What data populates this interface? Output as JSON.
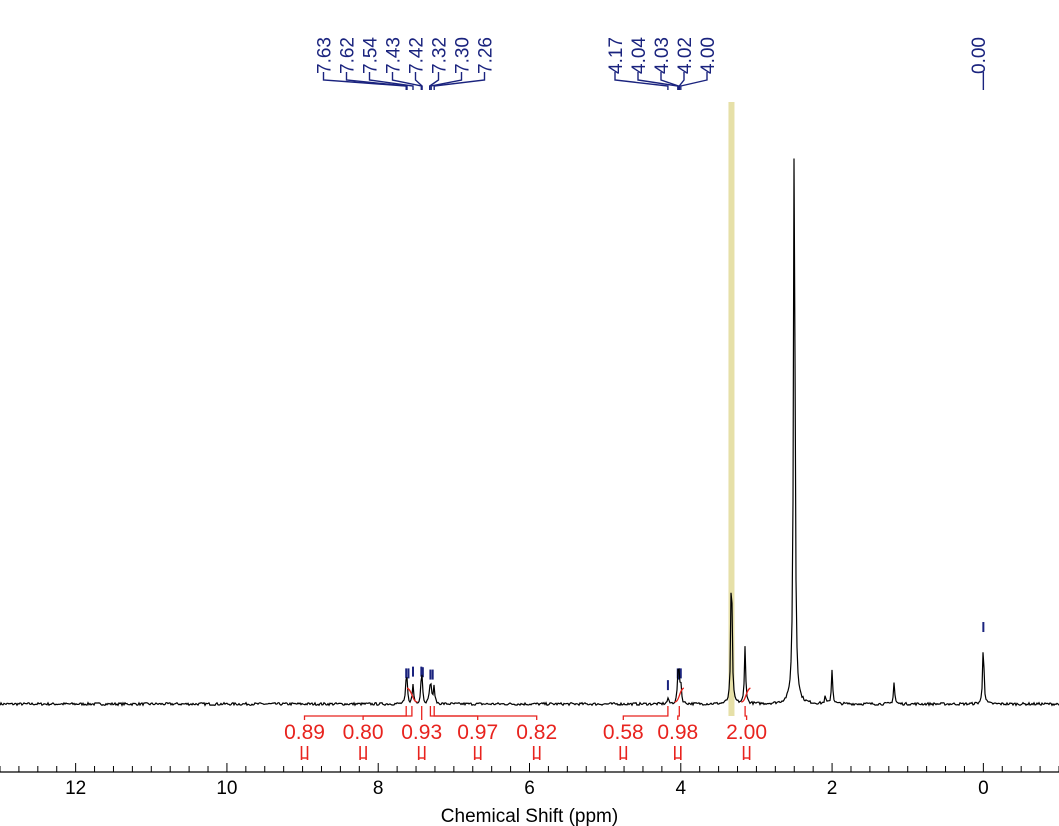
{
  "chart_data": {
    "type": "line",
    "xlabel": "Chemical Shift (ppm)",
    "xlim": [
      13,
      -1
    ],
    "x_reversed": true,
    "x_ticks": [
      12,
      10,
      8,
      6,
      4,
      2,
      0
    ],
    "grid": false,
    "colors": {
      "spectrum": "#000000",
      "peak_labels": "#1a237e",
      "integrals": "#e8231e",
      "solvent_highlight": "#e6e0a8"
    },
    "peak_groups": [
      {
        "labels": [
          "7.63",
          "7.62",
          "7.54",
          "7.43",
          "7.42",
          "7.32",
          "7.30",
          "7.26"
        ]
      },
      {
        "labels": [
          "4.17",
          "4.04",
          "4.03",
          "4.02",
          "4.00"
        ]
      },
      {
        "labels": [
          "0.00"
        ]
      }
    ],
    "integrals": [
      {
        "range": [
          9.0,
          8.95
        ],
        "value": "0.89",
        "parent": 7.63
      },
      {
        "range": [
          8.22,
          8.18
        ],
        "value": "0.80",
        "parent": 7.555
      },
      {
        "range": [
          7.45,
          7.4
        ],
        "value": "0.93",
        "parent": 7.425
      },
      {
        "range": [
          6.72,
          6.65
        ],
        "value": "0.97",
        "parent": 7.31
      },
      {
        "range": [
          5.93,
          5.88
        ],
        "value": "0.82",
        "parent": 7.26
      },
      {
        "range": [
          4.82,
          4.7
        ],
        "value": "0.58",
        "parent": 4.17
      },
      {
        "range": [
          4.1,
          3.98
        ],
        "value": "0.98",
        "parent": 4.02
      },
      {
        "range": [
          3.18,
          3.08
        ],
        "value": "2.00",
        "parent": 3.15
      }
    ],
    "solvent_highlight_ppm": 3.33,
    "peaks": [
      {
        "ppm": 7.63,
        "height": 0.03
      },
      {
        "ppm": 7.62,
        "height": 0.03
      },
      {
        "ppm": 7.54,
        "height": 0.033
      },
      {
        "ppm": 7.43,
        "height": 0.033
      },
      {
        "ppm": 7.42,
        "height": 0.032
      },
      {
        "ppm": 7.32,
        "height": 0.026
      },
      {
        "ppm": 7.3,
        "height": 0.028
      },
      {
        "ppm": 7.26,
        "height": 0.03
      },
      {
        "ppm": 4.17,
        "height": 0.01
      },
      {
        "ppm": 4.04,
        "height": 0.03
      },
      {
        "ppm": 4.03,
        "height": 0.028
      },
      {
        "ppm": 4.02,
        "height": 0.03
      },
      {
        "ppm": 4.0,
        "height": 0.03
      },
      {
        "ppm": 3.33,
        "height": 0.258
      },
      {
        "ppm": 3.15,
        "height": 0.098
      },
      {
        "ppm": 2.5,
        "height": 1.0
      },
      {
        "ppm": 2.09,
        "height": 0.012
      },
      {
        "ppm": 2.0,
        "height": 0.058
      },
      {
        "ppm": 1.18,
        "height": 0.037
      },
      {
        "ppm": 0.0,
        "height": 0.109
      }
    ]
  }
}
